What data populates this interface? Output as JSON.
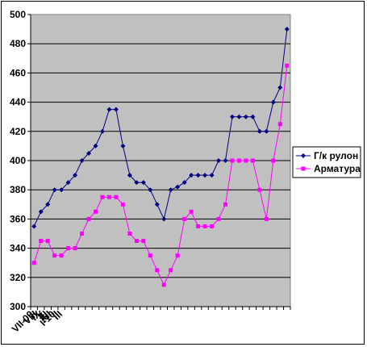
{
  "chart_data": {
    "type": "line",
    "x_tick_labels": [
      "VII-09",
      "VIII",
      "IX",
      "X",
      "XI",
      "XII",
      "I-10",
      "II",
      "III"
    ],
    "ylim": [
      300,
      500
    ],
    "y_ticks": [
      300,
      320,
      340,
      360,
      380,
      400,
      420,
      440,
      460,
      480,
      500
    ],
    "grid": true,
    "legend_position": "right",
    "plot_background": "#c0c0c0",
    "series": [
      {
        "name": "Г/к рулон",
        "color": "#000080",
        "marker": "diamond",
        "values": [
          355,
          365,
          370,
          380,
          380,
          385,
          390,
          400,
          405,
          410,
          420,
          435,
          435,
          410,
          390,
          385,
          385,
          380,
          370,
          360,
          380,
          382,
          385,
          390,
          390,
          390,
          390,
          400,
          400,
          430,
          430,
          430,
          430,
          420,
          420,
          440,
          450,
          490
        ]
      },
      {
        "name": "Арматура",
        "color": "#ff00ff",
        "marker": "square",
        "values": [
          330,
          345,
          345,
          335,
          335,
          340,
          340,
          350,
          360,
          365,
          375,
          375,
          375,
          370,
          350,
          345,
          345,
          335,
          325,
          315,
          325,
          335,
          360,
          365,
          355,
          355,
          355,
          360,
          370,
          400,
          400,
          400,
          400,
          380,
          360,
          400,
          425,
          465
        ]
      }
    ]
  }
}
